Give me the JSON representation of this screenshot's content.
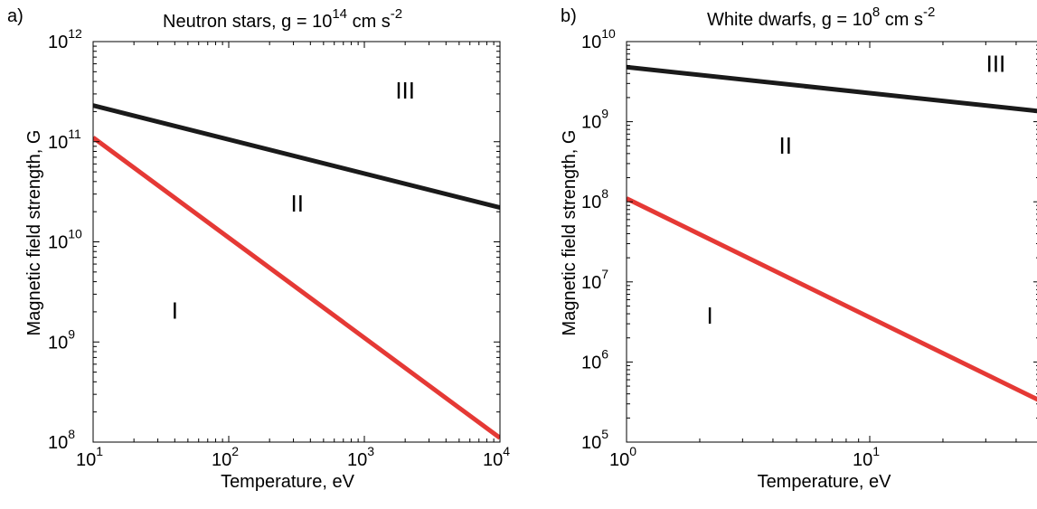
{
  "chart_data": [
    {
      "type": "line",
      "panel_label": "a)",
      "title": "Neutron stars, g = 10",
      "title_exp": "14",
      "title_tail": " cm s",
      "title_tail_exp": "-2",
      "xlabel": "Temperature, eV",
      "ylabel": "Magnetic field strength, G",
      "xscale": "log",
      "yscale": "log",
      "xlim": [
        10,
        10000
      ],
      "ylim": [
        100000000,
        1000000000000
      ],
      "x_ticks": [
        {
          "value": 10,
          "base": "10",
          "exp": "1"
        },
        {
          "value": 100,
          "base": "10",
          "exp": "2"
        },
        {
          "value": 1000,
          "base": "10",
          "exp": "3"
        },
        {
          "value": 10000,
          "base": "10",
          "exp": "4"
        }
      ],
      "y_ticks": [
        {
          "value": 100000000,
          "base": "10",
          "exp": "8"
        },
        {
          "value": 1000000000,
          "base": "10",
          "exp": "9"
        },
        {
          "value": 10000000000,
          "base": "10",
          "exp": "10"
        },
        {
          "value": 100000000000,
          "base": "10",
          "exp": "11"
        },
        {
          "value": 1000000000000,
          "base": "10",
          "exp": "12"
        }
      ],
      "grid": false,
      "series": [
        {
          "color": "#1a1a1a",
          "x": [
            10,
            10000
          ],
          "y": [
            230000000000,
            22000000000
          ]
        },
        {
          "color": "#e53935",
          "x": [
            10,
            10000
          ],
          "y": [
            110000000000,
            110000000
          ]
        }
      ],
      "regions": [
        {
          "text": "I",
          "x": 40,
          "y": 1700000000
        },
        {
          "text": "II",
          "x": 320,
          "y": 20000000000
        },
        {
          "text": "III",
          "x": 2000,
          "y": 270000000000
        }
      ]
    },
    {
      "type": "line",
      "panel_label": "b)",
      "title": "White dwarfs, g = 10",
      "title_exp": "8",
      "title_tail": " cm s",
      "title_tail_exp": "-2",
      "xlabel": "Temperature, eV",
      "ylabel": "Magnetic field strength, G",
      "xscale": "log",
      "yscale": "log",
      "xlim": [
        1,
        50
      ],
      "ylim": [
        100000,
        10000000000
      ],
      "x_ticks": [
        {
          "value": 1,
          "base": "10",
          "exp": "0"
        },
        {
          "value": 10,
          "base": "10",
          "exp": "1"
        }
      ],
      "y_ticks": [
        {
          "value": 100000,
          "base": "10",
          "exp": "5"
        },
        {
          "value": 1000000,
          "base": "10",
          "exp": "6"
        },
        {
          "value": 10000000,
          "base": "10",
          "exp": "7"
        },
        {
          "value": 100000000,
          "base": "10",
          "exp": "8"
        },
        {
          "value": 1000000000,
          "base": "10",
          "exp": "9"
        },
        {
          "value": 10000000000,
          "base": "10",
          "exp": "10"
        }
      ],
      "grid": false,
      "series": [
        {
          "color": "#1a1a1a",
          "x": [
            1,
            50
          ],
          "y": [
            4800000000,
            1350000000
          ]
        },
        {
          "color": "#e53935",
          "x": [
            1,
            50
          ],
          "y": [
            110000000,
            330000
          ]
        }
      ],
      "regions": [
        {
          "text": "I",
          "x": 2.2,
          "y": 3000000
        },
        {
          "text": "II",
          "x": 4.5,
          "y": 400000000
        },
        {
          "text": "III",
          "x": 33,
          "y": 4200000000
        }
      ]
    }
  ]
}
